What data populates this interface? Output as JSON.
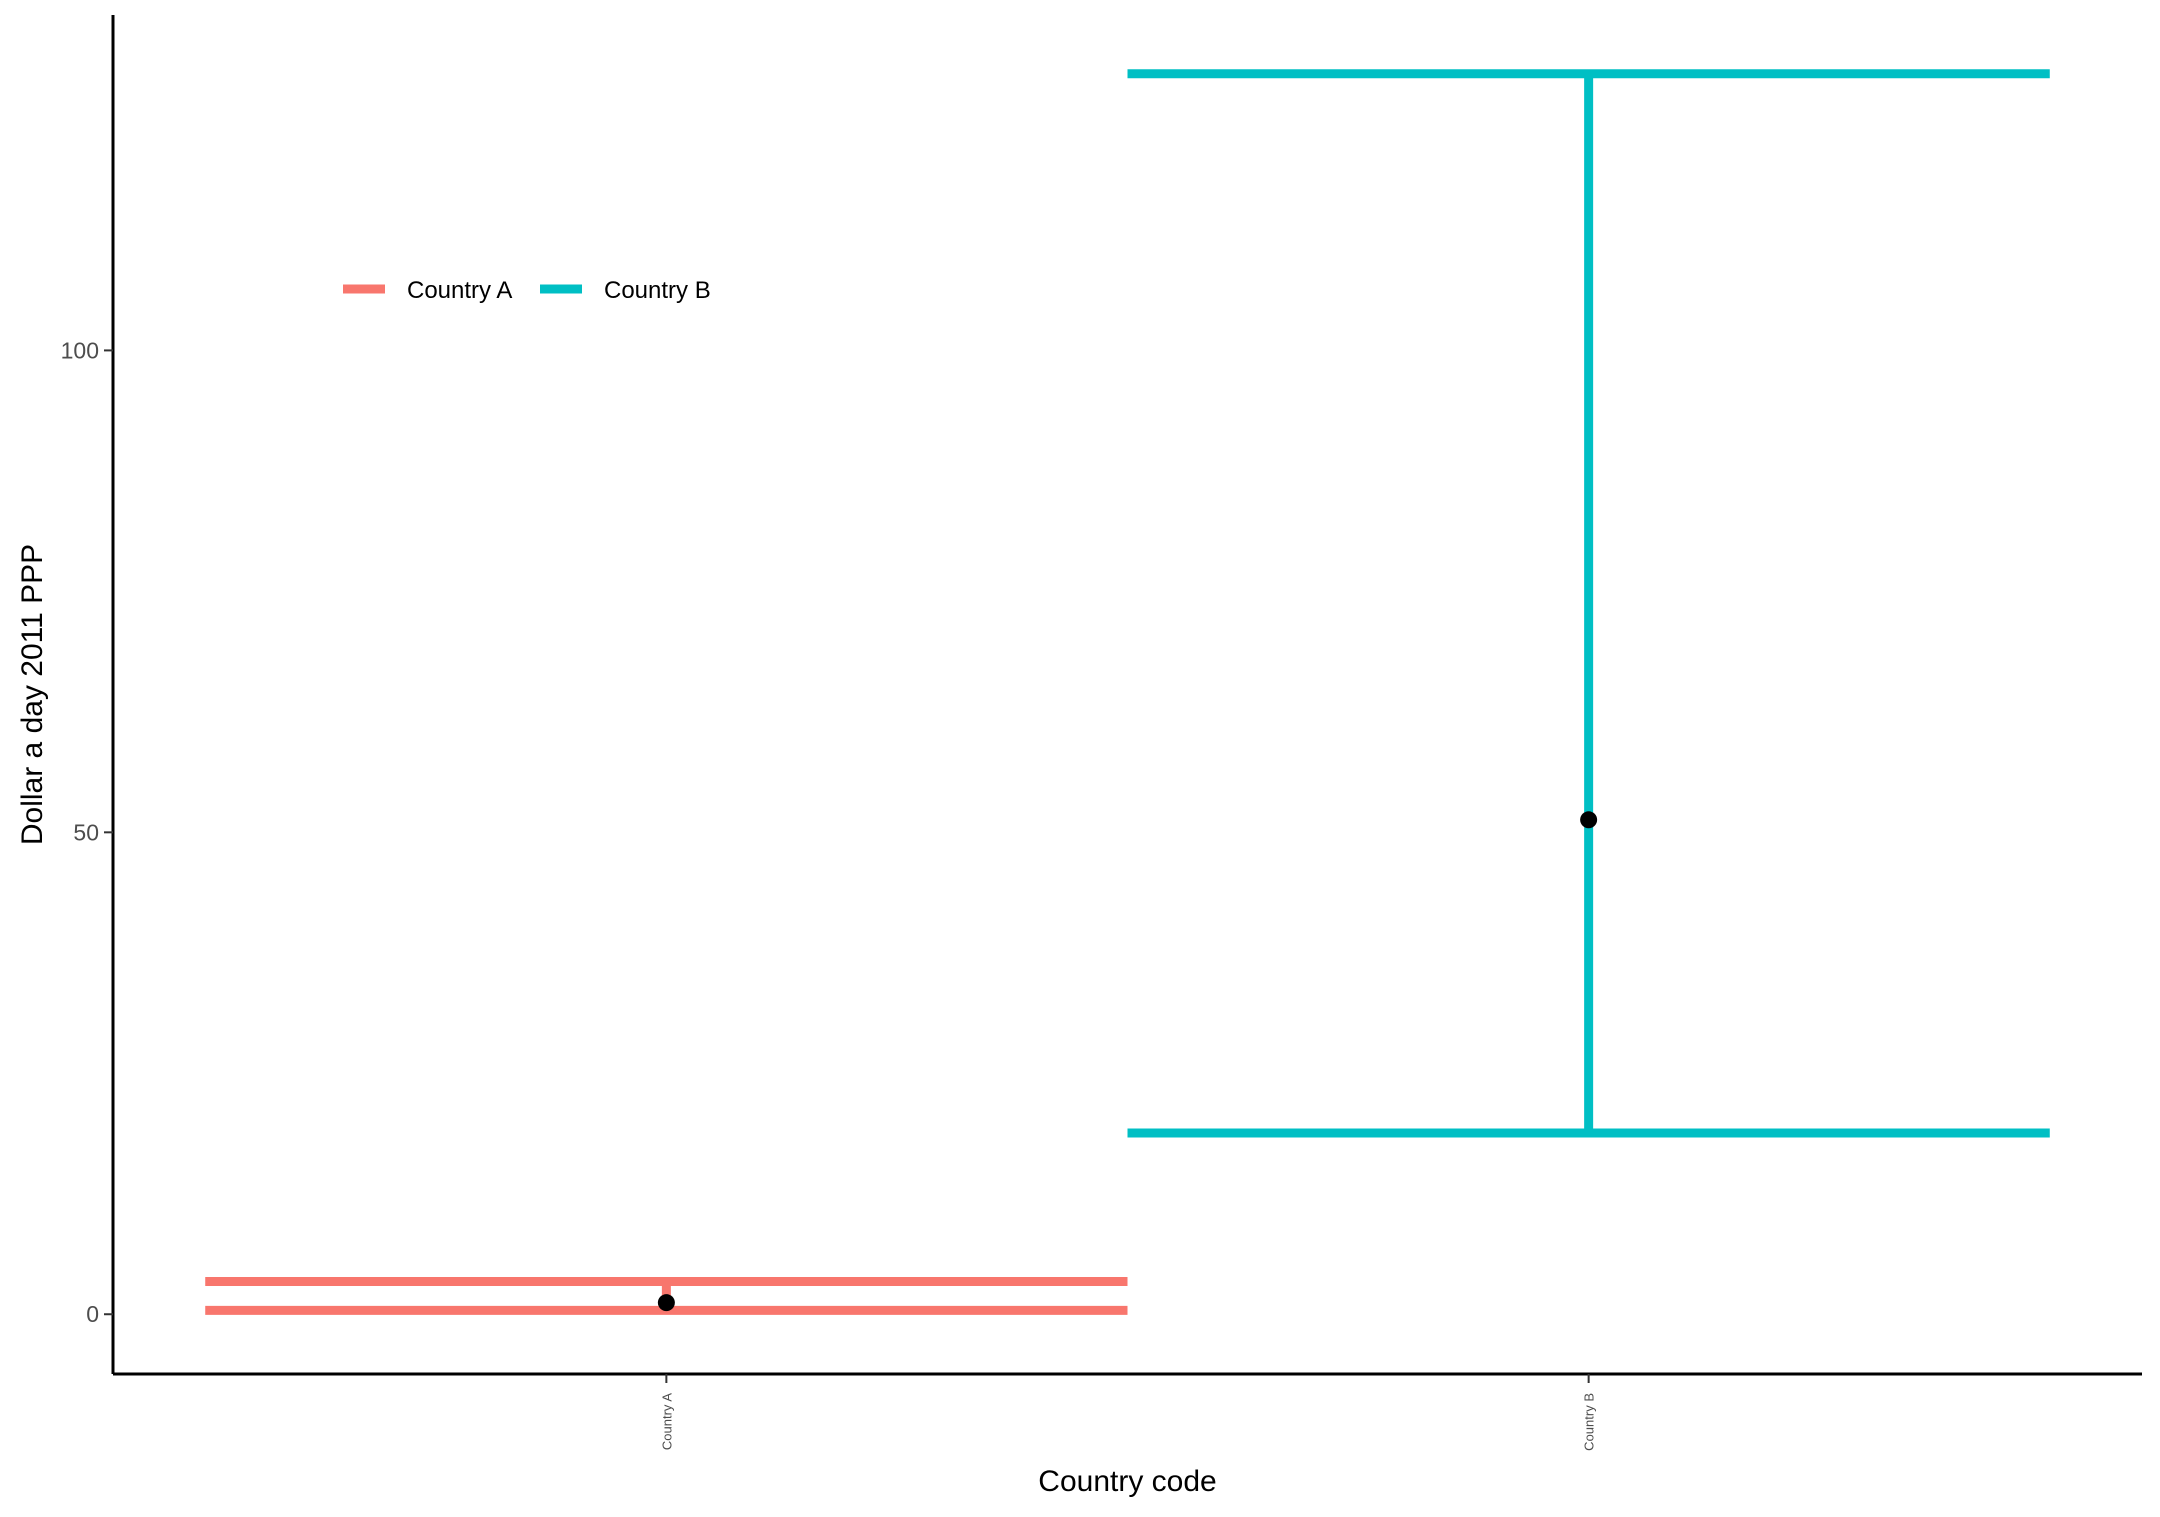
{
  "chart_data": {
    "type": "errorbar",
    "xlabel": "Country code",
    "ylabel": "Dollar a day 2011 PPP",
    "ylim": [
      -6.2,
      134.8
    ],
    "yticks": [
      0,
      50,
      100
    ],
    "categories": [
      "Country A",
      "Country B"
    ],
    "series": [
      {
        "name": "Country A",
        "color": "#F8766D",
        "point": 1.2,
        "lower": 0.4,
        "upper": 3.4
      },
      {
        "name": "Country B",
        "color": "#00BFC4",
        "point": 51.3,
        "lower": 18.8,
        "upper": 128.7
      }
    ],
    "point_color": "#000000",
    "grid": false,
    "legend": {
      "position": "top-left",
      "entries": [
        "Country A",
        "Country B"
      ]
    }
  }
}
